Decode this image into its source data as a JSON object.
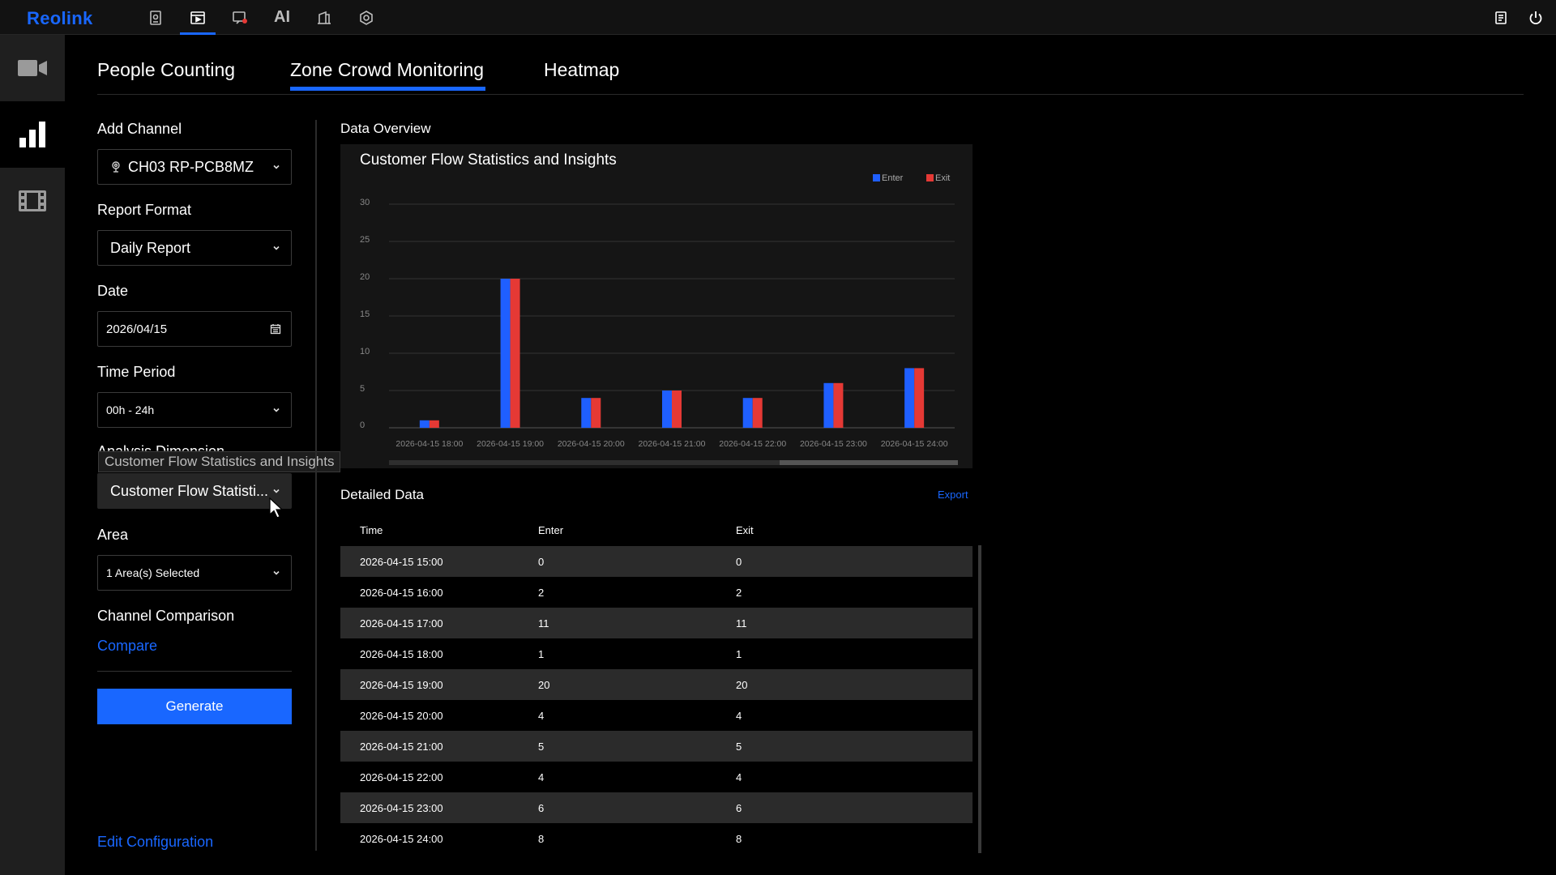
{
  "app": {
    "logo": "Reolink"
  },
  "topbar": {
    "icons": [
      "live-view-icon",
      "playback-icon",
      "event-icon",
      "AI",
      "device-icon",
      "settings-icon"
    ],
    "ai_label": "AI",
    "right_icons": [
      "notes-icon",
      "power-icon"
    ],
    "accent": "#1967ff"
  },
  "rail": {
    "items": [
      "camera-icon",
      "analytics-icon",
      "clips-icon"
    ]
  },
  "tabs": [
    {
      "label": "People Counting"
    },
    {
      "label": "Zone Crowd Monitoring"
    },
    {
      "label": "Heatmap"
    }
  ],
  "form": {
    "add_channel_label": "Add Channel",
    "channel_value": "CH03 RP-PCB8MZ",
    "report_format_label": "Report Format",
    "report_format_value": "Daily Report",
    "date_label": "Date",
    "date_value": "2026/04/15",
    "time_period_label": "Time Period",
    "time_period_value": "00h - 24h",
    "analysis_dimension_label": "Analysis Dimension",
    "analysis_dimension_value": "Customer Flow Statisti...",
    "tooltip": "Customer Flow Statistics and Insights",
    "area_label": "Area",
    "area_value": "1 Area(s) Selected",
    "channel_comparison_label": "Channel Comparison",
    "compare_link": "Compare",
    "generate_button": "Generate",
    "edit_configuration_link": "Edit Configuration"
  },
  "overview": {
    "title": "Data Overview"
  },
  "chart_data": {
    "type": "bar",
    "title": "Customer Flow Statistics and Insights",
    "categories": [
      "2026-04-15 18:00",
      "2026-04-15 19:00",
      "2026-04-15 20:00",
      "2026-04-15 21:00",
      "2026-04-15 22:00",
      "2026-04-15 23:00",
      "2026-04-15 24:00"
    ],
    "series": [
      {
        "name": "Enter",
        "color": "#1f5fff",
        "values": [
          1,
          20,
          4,
          5,
          4,
          6,
          8
        ]
      },
      {
        "name": "Exit",
        "color": "#e53935",
        "values": [
          1,
          20,
          4,
          5,
          4,
          6,
          8
        ]
      }
    ],
    "yticks": [
      "0",
      "5",
      "10",
      "15",
      "20",
      "25",
      "30"
    ],
    "ylim": [
      0,
      30
    ],
    "grid": true,
    "legend": "top-right"
  },
  "detail": {
    "title": "Detailed Data",
    "export_link": "Export",
    "columns": [
      "Time",
      "Enter",
      "Exit"
    ],
    "rows": [
      [
        "2026-04-15 15:00",
        "0",
        "0"
      ],
      [
        "2026-04-15 16:00",
        "2",
        "2"
      ],
      [
        "2026-04-15 17:00",
        "11",
        "11"
      ],
      [
        "2026-04-15 18:00",
        "1",
        "1"
      ],
      [
        "2026-04-15 19:00",
        "20",
        "20"
      ],
      [
        "2026-04-15 20:00",
        "4",
        "4"
      ],
      [
        "2026-04-15 21:00",
        "5",
        "5"
      ],
      [
        "2026-04-15 22:00",
        "4",
        "4"
      ],
      [
        "2026-04-15 23:00",
        "6",
        "6"
      ],
      [
        "2026-04-15 24:00",
        "8",
        "8"
      ]
    ]
  }
}
